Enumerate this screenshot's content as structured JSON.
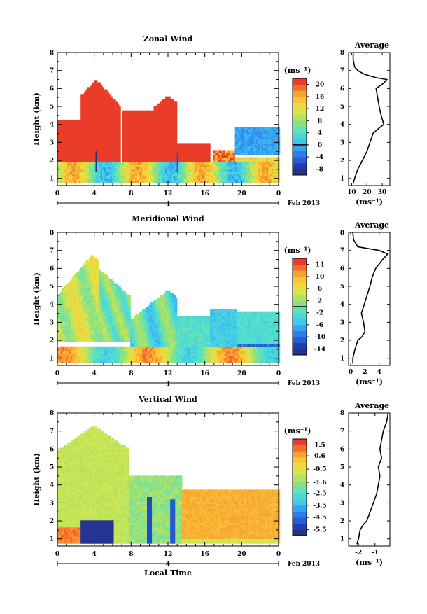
{
  "chart_data": [
    {
      "type": "heatmap",
      "title": "Zonal Wind",
      "ylabel": "Height (km)",
      "x_ticks": [
        "0",
        "4",
        "8",
        "12",
        "16",
        "20",
        "0"
      ],
      "y_ticks": [
        "1",
        "2",
        "3",
        "4",
        "5",
        "6",
        "7",
        "8"
      ],
      "xlim": [
        0,
        24
      ],
      "ylim": [
        0.6,
        8
      ],
      "day_label": "4",
      "date_label": "Feb 2013",
      "colorbar": {
        "unit": "(ms⁻¹)",
        "min": -10,
        "max": 22,
        "ticks": [
          "-8",
          "-4",
          "0",
          "4",
          "8",
          "12",
          "16",
          "20"
        ],
        "tick_values": [
          -8,
          -4,
          0,
          4,
          8,
          12,
          16,
          20
        ],
        "contour_value": 0
      },
      "profile": {
        "title": "Average",
        "x_ticks": [
          "10",
          "20",
          "30"
        ],
        "x_tick_values": [
          10,
          20,
          30
        ],
        "xlim": [
          8,
          35
        ],
        "xlabel": "(ms⁻¹)",
        "heights": [
          0.7,
          1.0,
          1.5,
          2.0,
          2.5,
          3.0,
          3.5,
          3.8,
          4.0,
          4.3,
          4.6,
          5.0,
          5.5,
          6.0,
          6.3,
          6.5,
          6.6,
          6.8,
          7.0,
          7.2,
          7.6,
          8.0
        ],
        "values": [
          11,
          12,
          14,
          17,
          20,
          22,
          24,
          28,
          31,
          30,
          29,
          28,
          27,
          26,
          31,
          33,
          26,
          18,
          14,
          12,
          11,
          11
        ]
      }
    },
    {
      "type": "heatmap",
      "title": "Meridional Wind",
      "ylabel": "Height (km)",
      "x_ticks": [
        "0",
        "4",
        "8",
        "12",
        "16",
        "20",
        "0"
      ],
      "y_ticks": [
        "1",
        "2",
        "3",
        "4",
        "5",
        "6",
        "7",
        "8"
      ],
      "xlim": [
        0,
        24
      ],
      "ylim": [
        0.6,
        8
      ],
      "day_label": "4",
      "date_label": "Feb 2013",
      "colorbar": {
        "unit": "(ms⁻¹)",
        "min": -16,
        "max": 16,
        "ticks": [
          "-14",
          "-10",
          "-6",
          "-2",
          "2",
          "6",
          "10",
          "14"
        ],
        "tick_values": [
          -14,
          -10,
          -6,
          -2,
          2,
          6,
          10,
          14
        ],
        "contour_value": 0
      },
      "profile": {
        "title": "Average",
        "x_ticks": [
          "0",
          "2",
          "4"
        ],
        "x_tick_values": [
          0,
          2,
          4
        ],
        "xlim": [
          -0.3,
          5.5
        ],
        "xlabel": "(ms⁻¹)",
        "heights": [
          0.7,
          1.0,
          1.5,
          2.0,
          2.2,
          2.5,
          3.0,
          3.5,
          4.0,
          4.5,
          5.0,
          5.5,
          6.0,
          6.5,
          6.8,
          7.0,
          7.2,
          7.6,
          8.0
        ],
        "values": [
          0.3,
          0.3,
          0.6,
          1.0,
          1.6,
          2.0,
          1.8,
          1.5,
          1.9,
          2.3,
          2.7,
          3.0,
          3.5,
          4.5,
          5.2,
          4.0,
          1.0,
          0.4,
          0.3
        ]
      }
    },
    {
      "type": "heatmap",
      "title": "Vertical Wind",
      "ylabel": "Height (km)",
      "xlabel": "Local Time",
      "x_ticks": [
        "0",
        "4",
        "8",
        "12",
        "16",
        "20",
        "0"
      ],
      "y_ticks": [
        "1",
        "2",
        "3",
        "4",
        "5",
        "6",
        "7",
        "8"
      ],
      "xlim": [
        0,
        24
      ],
      "ylim": [
        0.6,
        8
      ],
      "day_label": "4",
      "date_label": "Feb 2013",
      "colorbar": {
        "unit": "(ms⁻¹)",
        "min": -6.0,
        "max": 2.0,
        "ticks": [
          "-5.5",
          "-4.5",
          "-3.5",
          "-2.5",
          "-1.6",
          "-0.5",
          "0.6",
          "1.5"
        ],
        "tick_values": [
          -5.5,
          -4.5,
          -3.5,
          -2.5,
          -1.6,
          -0.5,
          0.6,
          1.5
        ]
      },
      "profile": {
        "title": "Average",
        "x_ticks": [
          "-2",
          "-1"
        ],
        "x_tick_values": [
          -2,
          -1
        ],
        "xlim": [
          -2.6,
          -0.1
        ],
        "xlabel": "(ms⁻¹)",
        "heights": [
          0.7,
          1.0,
          1.5,
          1.8,
          2.0,
          2.5,
          3.0,
          3.5,
          4.0,
          4.5,
          5.0,
          5.5,
          6.0,
          6.5,
          7.0,
          7.5,
          8.0
        ],
        "values": [
          -2.1,
          -2.0,
          -1.9,
          -1.7,
          -1.5,
          -1.3,
          -1.1,
          -0.9,
          -0.8,
          -0.7,
          -0.8,
          -0.6,
          -0.7,
          -0.6,
          -0.5,
          -0.3,
          -0.2
        ]
      }
    }
  ]
}
